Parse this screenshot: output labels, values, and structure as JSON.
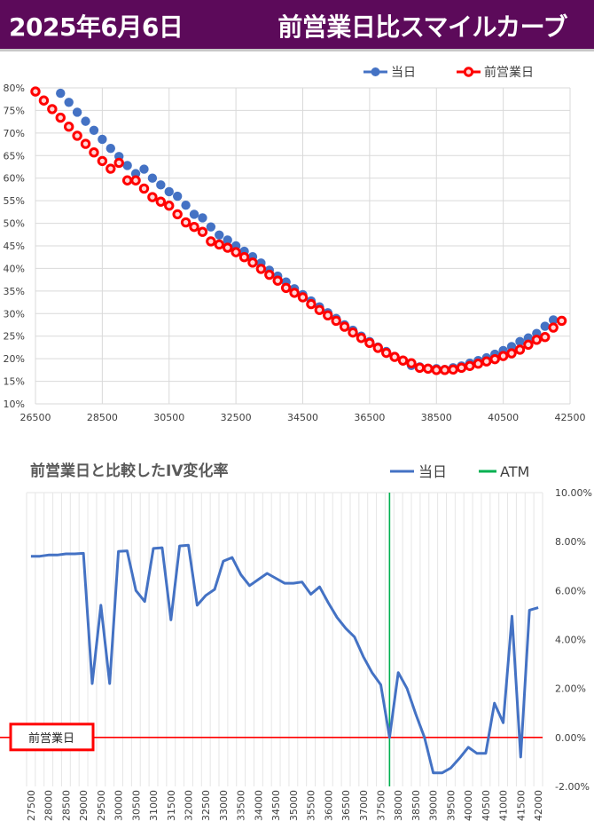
{
  "header": {
    "date": "2025年6月6日",
    "title": "前営業日比スマイルカーブ"
  },
  "chart_data": [
    {
      "type": "scatter",
      "title": "",
      "legend_position": "top-right",
      "xlim": [
        26500,
        42500
      ],
      "ylim": [
        10,
        80
      ],
      "x_ticks": [
        "26500",
        "28500",
        "30500",
        "32500",
        "34500",
        "36500",
        "38500",
        "40500",
        "42500"
      ],
      "y_ticks": [
        "10%",
        "15%",
        "20%",
        "25%",
        "30%",
        "35%",
        "40%",
        "45%",
        "50%",
        "55%",
        "60%",
        "65%",
        "70%",
        "75%",
        "80%"
      ],
      "series": [
        {
          "name": "当日",
          "color": "#4472c4",
          "x": [
            27250,
            27500,
            27750,
            28000,
            28250,
            28500,
            28750,
            29000,
            29250,
            29500,
            29750,
            30000,
            30250,
            30500,
            30750,
            31000,
            31250,
            31500,
            31750,
            32000,
            32250,
            32500,
            32750,
            33000,
            33250,
            33500,
            33750,
            34000,
            34250,
            34500,
            34750,
            35000,
            35250,
            35500,
            35750,
            36000,
            36250,
            36500,
            36750,
            37000,
            37250,
            37500,
            37750,
            38000,
            38250,
            38500,
            38750,
            39000,
            39250,
            39500,
            39750,
            40000,
            40250,
            40500,
            40750,
            41000,
            41250,
            41500,
            41750,
            42000
          ],
          "y": [
            78.8,
            76.8,
            74.6,
            72.6,
            70.6,
            68.6,
            66.6,
            64.8,
            62.8,
            61.0,
            62.0,
            60.0,
            58.5,
            57.0,
            56.0,
            54.0,
            52.0,
            51.2,
            49.2,
            47.4,
            46.3,
            45.0,
            43.8,
            42.6,
            41.2,
            39.6,
            38.3,
            37.0,
            35.5,
            34.2,
            32.8,
            31.5,
            30.2,
            28.9,
            27.5,
            26.3,
            25.0,
            23.8,
            22.6,
            21.6,
            20.5,
            19.5,
            18.5,
            18.2,
            17.8,
            17.8,
            17.6,
            18.0,
            18.4,
            19.0,
            19.6,
            20.2,
            21.0,
            21.8,
            22.7,
            23.8,
            24.6,
            25.6,
            27.2,
            28.6
          ]
        },
        {
          "name": "前営業日",
          "color": "#ff0000",
          "x": [
            26500,
            26750,
            27000,
            27250,
            27500,
            27750,
            28000,
            28250,
            28500,
            28750,
            29000,
            29250,
            29500,
            29750,
            30000,
            30250,
            30500,
            30750,
            31000,
            31250,
            31500,
            31750,
            32000,
            32250,
            32500,
            32750,
            33000,
            33250,
            33500,
            33750,
            34000,
            34250,
            34500,
            34750,
            35000,
            35250,
            35500,
            35750,
            36000,
            36250,
            36500,
            36750,
            37000,
            37250,
            37500,
            37750,
            38000,
            38250,
            38500,
            38750,
            39000,
            39250,
            39500,
            39750,
            40000,
            40250,
            40500,
            40750,
            41000,
            41250,
            41500,
            41750,
            42000,
            42250
          ],
          "y": [
            79.2,
            77.2,
            75.3,
            73.4,
            71.4,
            69.4,
            67.6,
            65.7,
            63.8,
            62.1,
            63.4,
            59.5,
            59.5,
            57.7,
            55.8,
            54.8,
            53.9,
            52.0,
            50.2,
            49.2,
            48.1,
            46.0,
            45.3,
            44.6,
            43.6,
            42.5,
            41.3,
            39.9,
            38.6,
            37.3,
            35.7,
            34.6,
            33.6,
            32.1,
            30.8,
            29.6,
            28.4,
            27.1,
            25.8,
            24.6,
            23.5,
            22.4,
            21.3,
            20.4,
            19.6,
            19.0,
            18.0,
            17.8,
            17.5,
            17.5,
            17.6,
            18.0,
            18.4,
            18.9,
            19.4,
            19.9,
            20.6,
            21.2,
            22.0,
            23.1,
            24.2,
            24.8,
            26.9,
            28.4
          ]
        }
      ]
    },
    {
      "type": "line",
      "title": "前営業日と比較したIV変化率",
      "legend_position": "top-right",
      "ylim": [
        -2,
        10
      ],
      "y_ticks": [
        "-2.00%",
        "0.00%",
        "2.00%",
        "4.00%",
        "6.00%",
        "8.00%",
        "10.00%"
      ],
      "x_ticks": [
        "27500",
        "28000",
        "28500",
        "29000",
        "29500",
        "30000",
        "30500",
        "31000",
        "31500",
        "32000",
        "32500",
        "33000",
        "33500",
        "34000",
        "34500",
        "35000",
        "35500",
        "36000",
        "36500",
        "37000",
        "37500",
        "38000",
        "38500",
        "39000",
        "39500",
        "40000",
        "40500",
        "41000",
        "41500",
        "42000"
      ],
      "categories": [
        "27500",
        "27750",
        "28000",
        "28250",
        "28500",
        "28750",
        "29000",
        "29250",
        "29500",
        "29750",
        "30000",
        "30250",
        "30500",
        "30750",
        "31000",
        "31250",
        "31500",
        "31750",
        "32000",
        "32250",
        "32500",
        "32750",
        "33000",
        "33250",
        "33500",
        "33750",
        "34000",
        "34250",
        "34500",
        "34750",
        "35000",
        "35250",
        "35500",
        "35750",
        "36000",
        "36250",
        "36500",
        "36750",
        "37000",
        "37250",
        "37500",
        "37750",
        "38000",
        "38250",
        "38500",
        "38750",
        "39000",
        "39250",
        "39500",
        "39750",
        "40000",
        "40250",
        "40500",
        "40750",
        "41000",
        "41250",
        "41500",
        "41750",
        "42000"
      ],
      "series": [
        {
          "name": "当日",
          "color": "#4472c4",
          "values": [
            7.4,
            7.4,
            7.45,
            7.45,
            7.5,
            7.5,
            7.52,
            2.2,
            5.4,
            2.2,
            7.6,
            7.62,
            6.0,
            5.55,
            7.72,
            7.75,
            4.8,
            7.82,
            7.85,
            5.4,
            5.8,
            6.05,
            7.2,
            7.35,
            6.65,
            6.2,
            6.45,
            6.7,
            6.5,
            6.3,
            6.3,
            6.35,
            5.85,
            6.15,
            5.5,
            4.9,
            4.45,
            4.1,
            3.3,
            2.65,
            2.15,
            0.0,
            2.65,
            2.0,
            0.95,
            0.0,
            -1.45,
            -1.45,
            -1.25,
            -0.85,
            -0.4,
            -0.65,
            -0.65,
            1.4,
            0.6,
            4.95,
            -0.8,
            5.2,
            5.3
          ]
        },
        {
          "name": "ATM",
          "color": "#00b050",
          "x": "37750"
        }
      ],
      "annotation": "前営業日"
    }
  ]
}
